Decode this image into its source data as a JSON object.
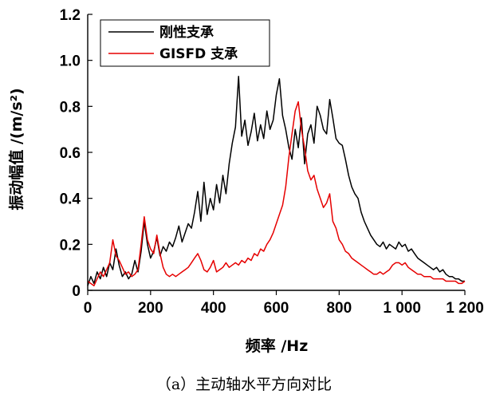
{
  "chart_data": {
    "type": "line",
    "xlabel": "频率 /Hz",
    "ylabel": "振动幅值 /(m/s²)",
    "xlim": [
      0,
      1200
    ],
    "ylim": [
      0,
      1.2
    ],
    "x_ticks": [
      0,
      200,
      400,
      600,
      800,
      1000,
      1200
    ],
    "x_tick_labels": [
      "0",
      "200",
      "400",
      "600",
      "800",
      "1 000",
      "1 200"
    ],
    "y_ticks": [
      0,
      0.2,
      0.4,
      0.6,
      0.8,
      1.0,
      1.2
    ],
    "y_tick_labels": [
      "0",
      "0.2",
      "0.4",
      "0.6",
      "0.8",
      "1.0",
      "1.2"
    ],
    "grid": false,
    "legend_position": "top-left",
    "series": [
      {
        "name": "刚性支承",
        "color": "#000000",
        "x": [
          0,
          10,
          20,
          30,
          40,
          50,
          60,
          70,
          80,
          90,
          100,
          110,
          120,
          130,
          140,
          150,
          160,
          170,
          180,
          190,
          200,
          210,
          220,
          230,
          240,
          250,
          260,
          270,
          280,
          290,
          300,
          310,
          320,
          330,
          340,
          350,
          360,
          370,
          380,
          390,
          400,
          410,
          420,
          430,
          440,
          450,
          460,
          470,
          480,
          490,
          500,
          510,
          520,
          530,
          540,
          550,
          560,
          570,
          580,
          590,
          600,
          610,
          620,
          630,
          640,
          650,
          660,
          670,
          680,
          690,
          700,
          710,
          720,
          730,
          740,
          750,
          760,
          770,
          780,
          790,
          800,
          810,
          820,
          830,
          840,
          850,
          860,
          870,
          880,
          890,
          900,
          910,
          920,
          930,
          940,
          950,
          960,
          970,
          980,
          990,
          1000,
          1010,
          1020,
          1030,
          1040,
          1050,
          1060,
          1070,
          1080,
          1090,
          1100,
          1110,
          1120,
          1130,
          1140,
          1150,
          1160,
          1170,
          1180,
          1190,
          1200
        ],
        "y": [
          0.02,
          0.06,
          0.03,
          0.08,
          0.05,
          0.1,
          0.06,
          0.12,
          0.09,
          0.18,
          0.11,
          0.06,
          0.08,
          0.05,
          0.07,
          0.13,
          0.08,
          0.17,
          0.3,
          0.2,
          0.14,
          0.17,
          0.23,
          0.15,
          0.19,
          0.17,
          0.21,
          0.19,
          0.23,
          0.28,
          0.21,
          0.25,
          0.29,
          0.27,
          0.34,
          0.43,
          0.3,
          0.47,
          0.33,
          0.4,
          0.35,
          0.46,
          0.38,
          0.5,
          0.42,
          0.55,
          0.64,
          0.71,
          0.93,
          0.67,
          0.74,
          0.63,
          0.69,
          0.77,
          0.65,
          0.72,
          0.66,
          0.78,
          0.7,
          0.74,
          0.85,
          0.92,
          0.76,
          0.7,
          0.62,
          0.57,
          0.7,
          0.62,
          0.75,
          0.55,
          0.68,
          0.72,
          0.64,
          0.8,
          0.76,
          0.7,
          0.68,
          0.83,
          0.75,
          0.66,
          0.64,
          0.63,
          0.57,
          0.5,
          0.45,
          0.42,
          0.4,
          0.34,
          0.3,
          0.27,
          0.24,
          0.22,
          0.2,
          0.19,
          0.21,
          0.18,
          0.2,
          0.19,
          0.18,
          0.21,
          0.19,
          0.2,
          0.17,
          0.18,
          0.16,
          0.14,
          0.13,
          0.12,
          0.11,
          0.1,
          0.09,
          0.1,
          0.08,
          0.09,
          0.07,
          0.06,
          0.06,
          0.05,
          0.05,
          0.04,
          0.04
        ]
      },
      {
        "name": "GISFD 支承",
        "color": "#e60000",
        "x": [
          0,
          10,
          20,
          30,
          40,
          50,
          60,
          70,
          80,
          90,
          100,
          110,
          120,
          130,
          140,
          150,
          160,
          170,
          180,
          190,
          200,
          210,
          220,
          230,
          240,
          250,
          260,
          270,
          280,
          290,
          300,
          310,
          320,
          330,
          340,
          350,
          360,
          370,
          380,
          390,
          400,
          410,
          420,
          430,
          440,
          450,
          460,
          470,
          480,
          490,
          500,
          510,
          520,
          530,
          540,
          550,
          560,
          570,
          580,
          590,
          600,
          610,
          620,
          630,
          640,
          650,
          660,
          670,
          680,
          690,
          700,
          710,
          720,
          730,
          740,
          750,
          760,
          770,
          780,
          790,
          800,
          810,
          820,
          830,
          840,
          850,
          860,
          870,
          880,
          890,
          900,
          910,
          920,
          930,
          940,
          950,
          960,
          970,
          980,
          990,
          1000,
          1010,
          1020,
          1030,
          1040,
          1050,
          1060,
          1070,
          1080,
          1090,
          1100,
          1110,
          1120,
          1130,
          1140,
          1150,
          1160,
          1170,
          1180,
          1190,
          1200
        ],
        "y": [
          0.04,
          0.03,
          0.02,
          0.05,
          0.08,
          0.06,
          0.09,
          0.12,
          0.22,
          0.15,
          0.13,
          0.1,
          0.07,
          0.08,
          0.06,
          0.07,
          0.09,
          0.2,
          0.32,
          0.22,
          0.18,
          0.16,
          0.24,
          0.16,
          0.1,
          0.07,
          0.06,
          0.07,
          0.06,
          0.07,
          0.08,
          0.09,
          0.1,
          0.12,
          0.14,
          0.16,
          0.13,
          0.09,
          0.08,
          0.1,
          0.13,
          0.08,
          0.09,
          0.1,
          0.12,
          0.1,
          0.11,
          0.12,
          0.11,
          0.13,
          0.12,
          0.14,
          0.13,
          0.16,
          0.15,
          0.18,
          0.17,
          0.2,
          0.22,
          0.25,
          0.29,
          0.33,
          0.37,
          0.45,
          0.58,
          0.68,
          0.78,
          0.82,
          0.7,
          0.62,
          0.52,
          0.48,
          0.5,
          0.44,
          0.4,
          0.36,
          0.38,
          0.42,
          0.3,
          0.27,
          0.22,
          0.2,
          0.17,
          0.16,
          0.14,
          0.13,
          0.12,
          0.11,
          0.1,
          0.09,
          0.08,
          0.07,
          0.07,
          0.08,
          0.07,
          0.08,
          0.09,
          0.11,
          0.12,
          0.12,
          0.11,
          0.12,
          0.1,
          0.09,
          0.08,
          0.07,
          0.07,
          0.06,
          0.06,
          0.06,
          0.05,
          0.05,
          0.05,
          0.05,
          0.04,
          0.04,
          0.04,
          0.04,
          0.03,
          0.03,
          0.04
        ]
      }
    ]
  },
  "caption": "（a）主动轴水平方向对比"
}
